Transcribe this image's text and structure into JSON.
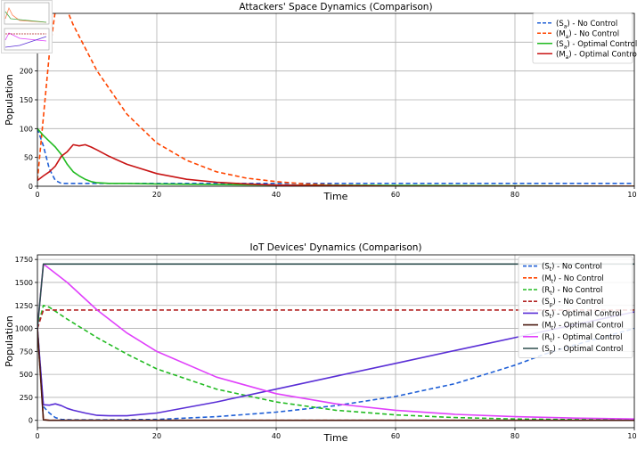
{
  "colors": {
    "no_control_s": "#1f5fd6",
    "no_control_m": "#ff4500",
    "optimal_s": "#22bb22",
    "optimal_m": "#c81414",
    "iot_nc_st": "#1f5fd6",
    "iot_nc_mt": "#ff4500",
    "iot_nc_rt": "#22bb22",
    "iot_nc_sp": "#b22222",
    "iot_oc_st": "#5a2fd6",
    "iot_oc_mt": "#4a1a10",
    "iot_oc_rt": "#e040fb",
    "iot_oc_sp": "#2f4f4f",
    "grid": "#b0b0b0"
  },
  "thumbnail": {
    "icon": "figure-thumbnail-icon"
  },
  "chart_data": [
    {
      "type": "line",
      "title": "Attackers' Space Dynamics (Comparison)",
      "xlabel": "Time",
      "ylabel": "Population",
      "xlim": [
        0,
        100
      ],
      "ylim": [
        0,
        300
      ],
      "xticks": [
        "0",
        "20",
        "40",
        "60",
        "80",
        "100"
      ],
      "yticks": [
        "0",
        "50",
        "100",
        "150",
        "200",
        "250"
      ],
      "yticks_values": [
        0,
        50,
        100,
        150,
        200,
        250
      ],
      "xticks_values": [
        0,
        20,
        40,
        60,
        80,
        100
      ],
      "grid": true,
      "legend_position": "top-right",
      "series": [
        {
          "name": "(S_a) - No Control",
          "key": "no_control_s",
          "dash": true,
          "x": [
            0,
            1,
            2,
            3,
            4,
            6,
            10,
            100
          ],
          "y": [
            100,
            70,
            30,
            10,
            5,
            5,
            5,
            5
          ]
        },
        {
          "name": "(M_a) - No Control",
          "key": "no_control_m",
          "dash": true,
          "x": [
            0,
            1,
            2,
            3,
            4,
            6,
            10,
            15,
            20,
            25,
            30,
            35,
            40,
            45,
            50,
            60,
            70,
            80,
            90,
            100
          ],
          "y": [
            10,
            120,
            230,
            305,
            330,
            280,
            200,
            125,
            75,
            45,
            25,
            14,
            8,
            4,
            2,
            1,
            0,
            0,
            0,
            0
          ]
        },
        {
          "name": "(S_a) - Optimal Control",
          "key": "optimal_s",
          "dash": false,
          "x": [
            0,
            1,
            2,
            3,
            4,
            5,
            6,
            7,
            8,
            9,
            10,
            12,
            15,
            20,
            30,
            40,
            100
          ],
          "y": [
            100,
            88,
            78,
            68,
            55,
            38,
            25,
            18,
            12,
            8,
            6,
            5,
            5,
            4,
            3,
            2,
            0
          ]
        },
        {
          "name": "(M_a) - Optimal Control",
          "key": "optimal_m",
          "dash": false,
          "x": [
            0,
            1,
            2,
            3,
            4,
            5,
            6,
            7,
            8,
            9,
            10,
            12,
            15,
            20,
            25,
            30,
            35,
            40,
            50,
            60,
            70,
            80,
            100
          ],
          "y": [
            10,
            18,
            25,
            35,
            52,
            60,
            72,
            70,
            72,
            68,
            63,
            52,
            38,
            22,
            12,
            7,
            4,
            2,
            1,
            0,
            0,
            0,
            0
          ]
        }
      ]
    },
    {
      "type": "line",
      "title": "IoT Devices' Dynamics (Comparison)",
      "xlabel": "Time",
      "ylabel": "Population",
      "xlim": [
        0,
        100
      ],
      "ylim": [
        -80,
        1800
      ],
      "xticks": [
        "0",
        "20",
        "40",
        "60",
        "80",
        "100"
      ],
      "yticks": [
        "0",
        "250",
        "500",
        "750",
        "1000",
        "1250",
        "1500",
        "1750"
      ],
      "yticks_values": [
        0,
        250,
        500,
        750,
        1000,
        1250,
        1500,
        1750
      ],
      "xticks_values": [
        0,
        20,
        40,
        60,
        80,
        100
      ],
      "grid": true,
      "legend_position": "top-right",
      "series": [
        {
          "name": "(S_t) - No Control",
          "key": "iot_nc_st",
          "dash": true,
          "x": [
            0,
            1,
            2,
            3,
            4,
            6,
            10,
            20,
            30,
            40,
            50,
            60,
            70,
            80,
            85,
            90,
            100
          ],
          "y": [
            1000,
            150,
            80,
            30,
            10,
            5,
            5,
            10,
            40,
            90,
            160,
            260,
            400,
            600,
            720,
            820,
            1000
          ]
        },
        {
          "name": "(M_t) - No Control",
          "key": "iot_nc_mt",
          "dash": true,
          "x": [
            0,
            1,
            2,
            100
          ],
          "y": [
            1000,
            10,
            0,
            0
          ]
        },
        {
          "name": "(R_t) - No Control",
          "key": "iot_nc_rt",
          "dash": true,
          "x": [
            0,
            1,
            2,
            5,
            10,
            15,
            20,
            30,
            40,
            50,
            60,
            70,
            80,
            90,
            100
          ],
          "y": [
            1000,
            1250,
            1230,
            1100,
            900,
            720,
            560,
            340,
            200,
            110,
            60,
            30,
            15,
            8,
            5
          ]
        },
        {
          "name": "(S_p) - No Control",
          "key": "iot_nc_sp",
          "dash": true,
          "x": [
            0,
            1,
            2,
            100
          ],
          "y": [
            1000,
            1200,
            1200,
            1200
          ]
        },
        {
          "name": "(S_t) - Optimal Control",
          "key": "iot_oc_st",
          "dash": false,
          "x": [
            0,
            1,
            2,
            3,
            4,
            5,
            6,
            8,
            10,
            12,
            15,
            20,
            30,
            40,
            50,
            60,
            70,
            80,
            90,
            100
          ],
          "y": [
            1000,
            170,
            165,
            180,
            160,
            130,
            110,
            80,
            55,
            50,
            50,
            80,
            200,
            340,
            480,
            620,
            760,
            900,
            1040,
            1180
          ]
        },
        {
          "name": "(M_t) - Optimal Control",
          "key": "iot_oc_mt",
          "dash": false,
          "x": [
            0,
            1,
            2,
            100
          ],
          "y": [
            1000,
            5,
            0,
            0
          ]
        },
        {
          "name": "(R_t) - Optimal Control",
          "key": "iot_oc_rt",
          "dash": false,
          "x": [
            0,
            1,
            5,
            10,
            15,
            20,
            30,
            40,
            50,
            60,
            70,
            80,
            90,
            100
          ],
          "y": [
            1000,
            1700,
            1500,
            1200,
            950,
            750,
            470,
            290,
            180,
            110,
            65,
            40,
            25,
            15
          ]
        },
        {
          "name": "(S_p) - Optimal Control",
          "key": "iot_oc_sp",
          "dash": false,
          "x": [
            0,
            1,
            2,
            100
          ],
          "y": [
            1000,
            1700,
            1700,
            1700
          ]
        }
      ]
    }
  ]
}
